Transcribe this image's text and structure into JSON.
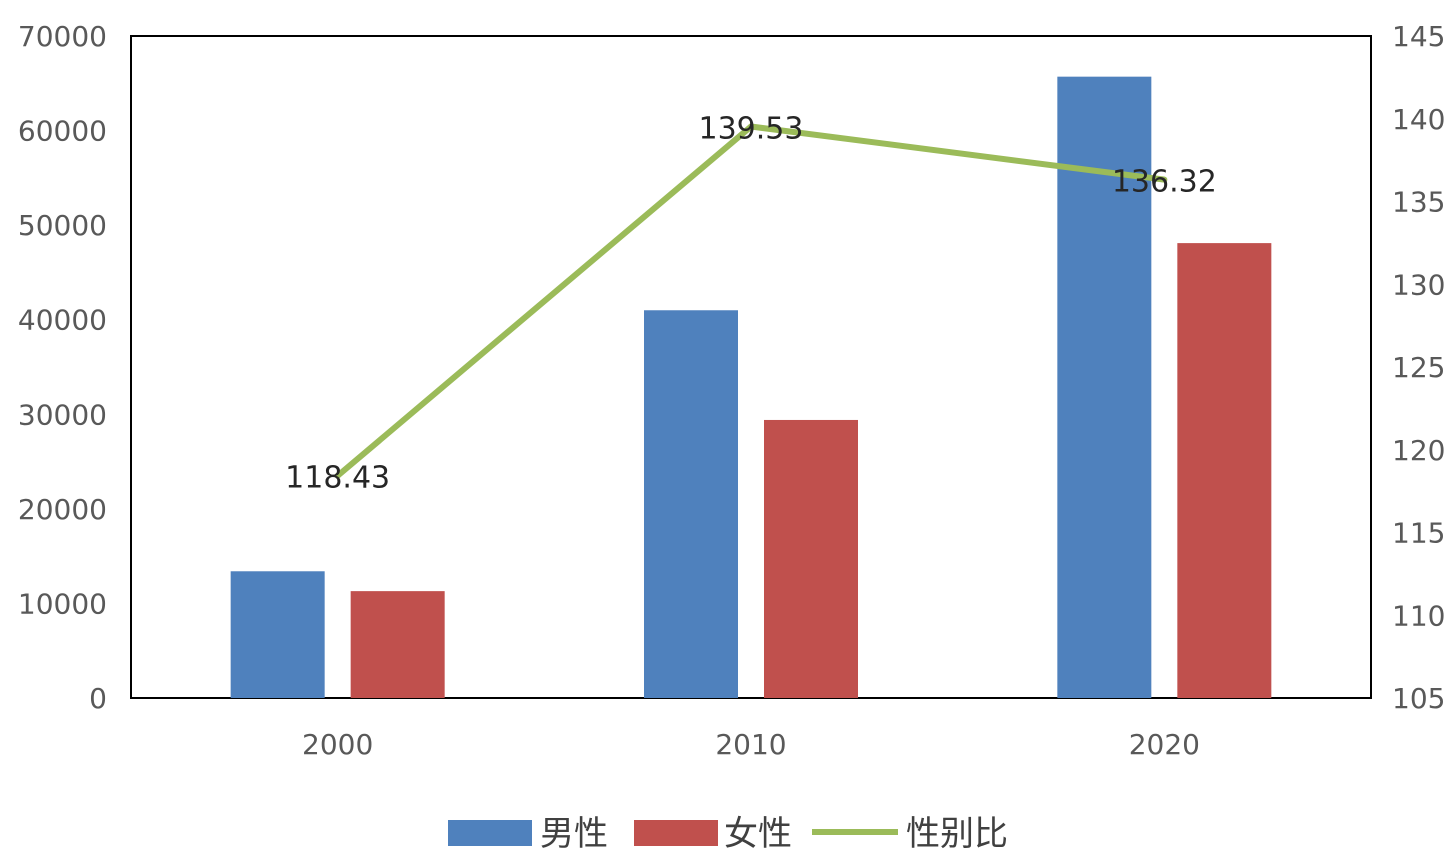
{
  "chart_data": {
    "type": "bar",
    "categories": [
      "2000",
      "2010",
      "2020"
    ],
    "series": [
      {
        "name": "男性",
        "type": "bar",
        "axis": "left",
        "values": [
          13400,
          41000,
          65700
        ],
        "color": "#4f81bd"
      },
      {
        "name": "女性",
        "type": "bar",
        "axis": "left",
        "values": [
          11300,
          29400,
          48100
        ],
        "color": "#c0504d"
      },
      {
        "name": "性别比",
        "type": "line",
        "axis": "right",
        "values": [
          118.43,
          139.53,
          136.32
        ],
        "color": "#9bbb59",
        "labels": [
          "118.43",
          "139.53",
          "136.32"
        ]
      }
    ],
    "y_left": {
      "min": 0,
      "max": 70000,
      "ticks": [
        0,
        10000,
        20000,
        30000,
        40000,
        50000,
        60000,
        70000
      ],
      "tick_labels": [
        "0",
        "10000",
        "20000",
        "30000",
        "40000",
        "50000",
        "60000",
        "70000"
      ]
    },
    "y_right": {
      "min": 105,
      "max": 145,
      "ticks": [
        105,
        110,
        115,
        120,
        125,
        130,
        135,
        140,
        145
      ],
      "tick_labels": [
        "105",
        "110",
        "115",
        "120",
        "125",
        "130",
        "135",
        "140",
        "145"
      ]
    },
    "legend_position": "bottom",
    "grid": false
  }
}
